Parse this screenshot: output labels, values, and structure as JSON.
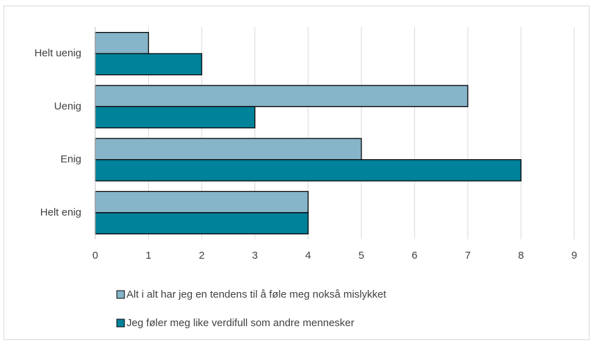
{
  "chart_data": {
    "type": "bar",
    "orientation": "horizontal",
    "categories": [
      "Helt uenig",
      "Uenig",
      "Enig",
      "Helt enig"
    ],
    "series": [
      {
        "name": "Alt i alt har jeg en tendens til å føle meg nokså mislykket",
        "color": "#86b4c8",
        "values": [
          1,
          7,
          5,
          4
        ]
      },
      {
        "name": "Jeg føler meg like verdifull som andre mennesker",
        "color": "#00829b",
        "values": [
          2,
          3,
          8,
          4
        ]
      }
    ],
    "xlim": [
      0,
      9
    ],
    "xticks": [
      0,
      1,
      2,
      3,
      4,
      5,
      6,
      7,
      8,
      9
    ],
    "grid": true,
    "legend": "bottom"
  }
}
